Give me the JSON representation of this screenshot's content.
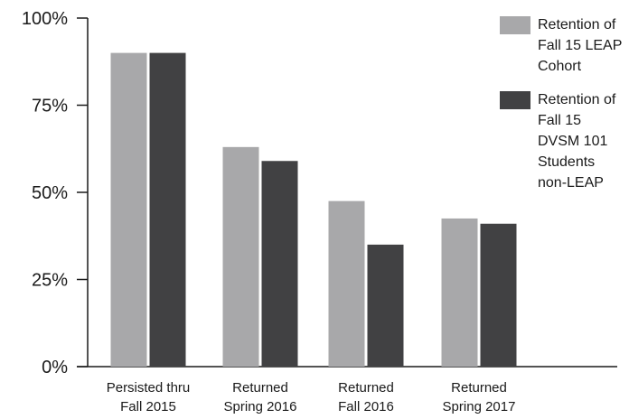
{
  "chart_data": {
    "type": "bar",
    "categories": [
      [
        "Persisted thru",
        "Fall 2015"
      ],
      [
        "Returned",
        "Spring 2016"
      ],
      [
        "Returned",
        "Fall 2016"
      ],
      [
        "Returned",
        "Spring 2017"
      ]
    ],
    "series": [
      {
        "name": "Retention of Fall 15 LEAP Cohort",
        "color": "#a8a8aa",
        "values": [
          90,
          63,
          47.5,
          42.5
        ]
      },
      {
        "name": "Retention of Fall 15 DVSM 101 Students non-LEAP",
        "color": "#414143",
        "values": [
          90,
          59,
          35,
          41
        ]
      }
    ],
    "ylim": [
      0,
      100
    ],
    "yticks": [
      0,
      25,
      50,
      75,
      100
    ],
    "ytick_labels": [
      "0%",
      "25%",
      "50%",
      "75%",
      "100%"
    ],
    "legend_position": "top-right",
    "grid": false
  }
}
